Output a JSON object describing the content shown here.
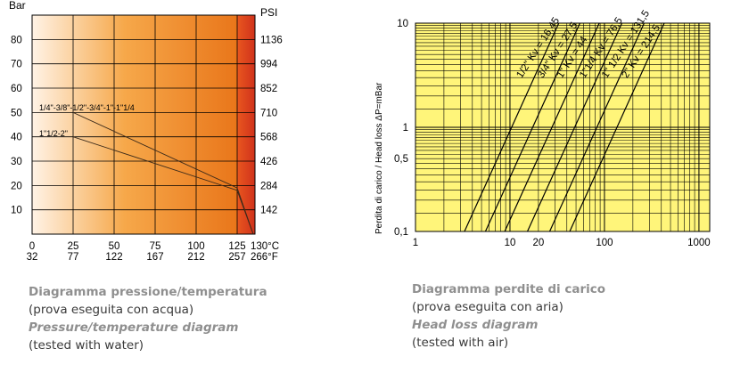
{
  "colors": {
    "pt_gradient_start": "#fff3e6",
    "pt_gradient_mid": "#f6a84a",
    "pt_gradient_end": "#e9761a",
    "pt_hot_band": "#d83a1f",
    "hl_background": "#fff57a",
    "grid_line": "#000000"
  },
  "left_chart": {
    "unit_left": "Bar",
    "unit_right": "PSI",
    "caption": {
      "title_it": "Diagramma pressione/temperatura",
      "subtitle_it": "(prova eseguita con acqua)",
      "title_en": "Pressure/temperature diagram",
      "subtitle_en": "(tested with water)"
    }
  },
  "right_chart": {
    "ylabel": "Perdita di carico / Head loss ΔP=mBar",
    "caption": {
      "title_it": "Diagramma perdite di carico",
      "subtitle_it": "(prova eseguita con aria)",
      "title_en": "Head loss diagram",
      "subtitle_en": "(tested with air)"
    }
  },
  "chart_data": [
    {
      "type": "line",
      "xlabel": "",
      "ylabel": "Bar",
      "x_unit_celsius": "°C",
      "x_unit_fahrenheit": "°F",
      "xlim": [
        0,
        140
      ],
      "ylim": [
        0,
        90
      ],
      "x_ticks_celsius": [
        "0",
        "25",
        "50",
        "75",
        "100",
        "125",
        "130"
      ],
      "x_ticks_fahrenheit": [
        "32",
        "77",
        "122",
        "167",
        "212",
        "257",
        "266"
      ],
      "y_ticks_bar": [
        "10",
        "20",
        "30",
        "40",
        "50",
        "60",
        "70",
        "80"
      ],
      "y_ticks_psi": [
        "142",
        "284",
        "426",
        "568",
        "710",
        "852",
        "994",
        "1136"
      ],
      "grid": true,
      "series": [
        {
          "name": "1/4\"-3/8\"-1/2\"-3/4\"-1\"-1\"1/4",
          "x": [
            25,
            125,
            130
          ],
          "y": [
            50,
            19,
            0
          ]
        },
        {
          "name": "1\"1/2-2\"",
          "x": [
            25,
            125,
            130
          ],
          "y": [
            40,
            18,
            0
          ]
        }
      ]
    },
    {
      "type": "line",
      "xscale": "log",
      "yscale": "log",
      "xlim": [
        1,
        1300
      ],
      "ylim": [
        0.1,
        10
      ],
      "x_ticks": [
        "1",
        "10",
        "20",
        "100",
        "1000"
      ],
      "y_ticks": [
        "0,1",
        "0,5",
        "1",
        "10"
      ],
      "grid": true,
      "series": [
        {
          "name": "1/2\" Kv = 16,45",
          "x": [
            3.3,
            16.45
          ],
          "y": [
            0.1,
            2.5
          ]
        },
        {
          "name": "3/4\" Kv = 27,5",
          "x": [
            5.5,
            27.5
          ],
          "y": [
            0.1,
            2.5
          ]
        },
        {
          "name": "1\" Kv = 44",
          "x": [
            8.8,
            44
          ],
          "y": [
            0.1,
            2.5
          ]
        },
        {
          "name": "1\"1/4 Kv = 76,5",
          "x": [
            15.3,
            76.5
          ],
          "y": [
            0.1,
            2.5
          ]
        },
        {
          "name": "1\" 1/2 Kv = 131,5",
          "x": [
            26.3,
            131.5
          ],
          "y": [
            0.1,
            2.5
          ]
        },
        {
          "name": "2\" Kv = 214,5",
          "x": [
            42.9,
            214.5
          ],
          "y": [
            0.1,
            2.5
          ]
        }
      ]
    }
  ]
}
